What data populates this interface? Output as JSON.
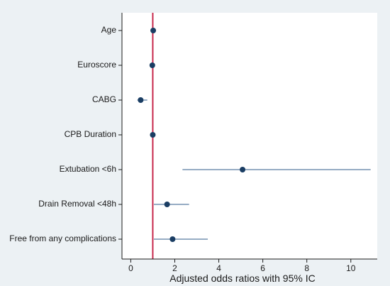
{
  "chart_data": {
    "type": "scatter",
    "subtype": "forest-plot",
    "xlabel": "Adjusted odds ratios with 95% IC",
    "xlim": [
      -0.4,
      11.2
    ],
    "xticks": [
      0,
      2,
      4,
      6,
      8,
      10
    ],
    "reference_line": {
      "x": 1,
      "color": "#c8294b"
    },
    "grid": false,
    "legend": "none",
    "point_color": "#1a3d63",
    "ci_color": "#2e5a8a",
    "categories": [
      "Age",
      "Euroscore",
      "CABG",
      "CPB Duration",
      "Extubation <6h",
      "Drain Removal <48h",
      "Free from any complications"
    ],
    "series": [
      {
        "estimate": [
          1.02,
          0.98,
          0.45,
          1.0,
          5.08,
          1.65,
          1.9
        ],
        "ci_low": [
          0.98,
          0.95,
          0.3,
          0.97,
          2.35,
          1.05,
          1.05
        ],
        "ci_high": [
          1.06,
          1.02,
          0.75,
          1.03,
          10.9,
          2.65,
          3.5
        ]
      }
    ]
  }
}
